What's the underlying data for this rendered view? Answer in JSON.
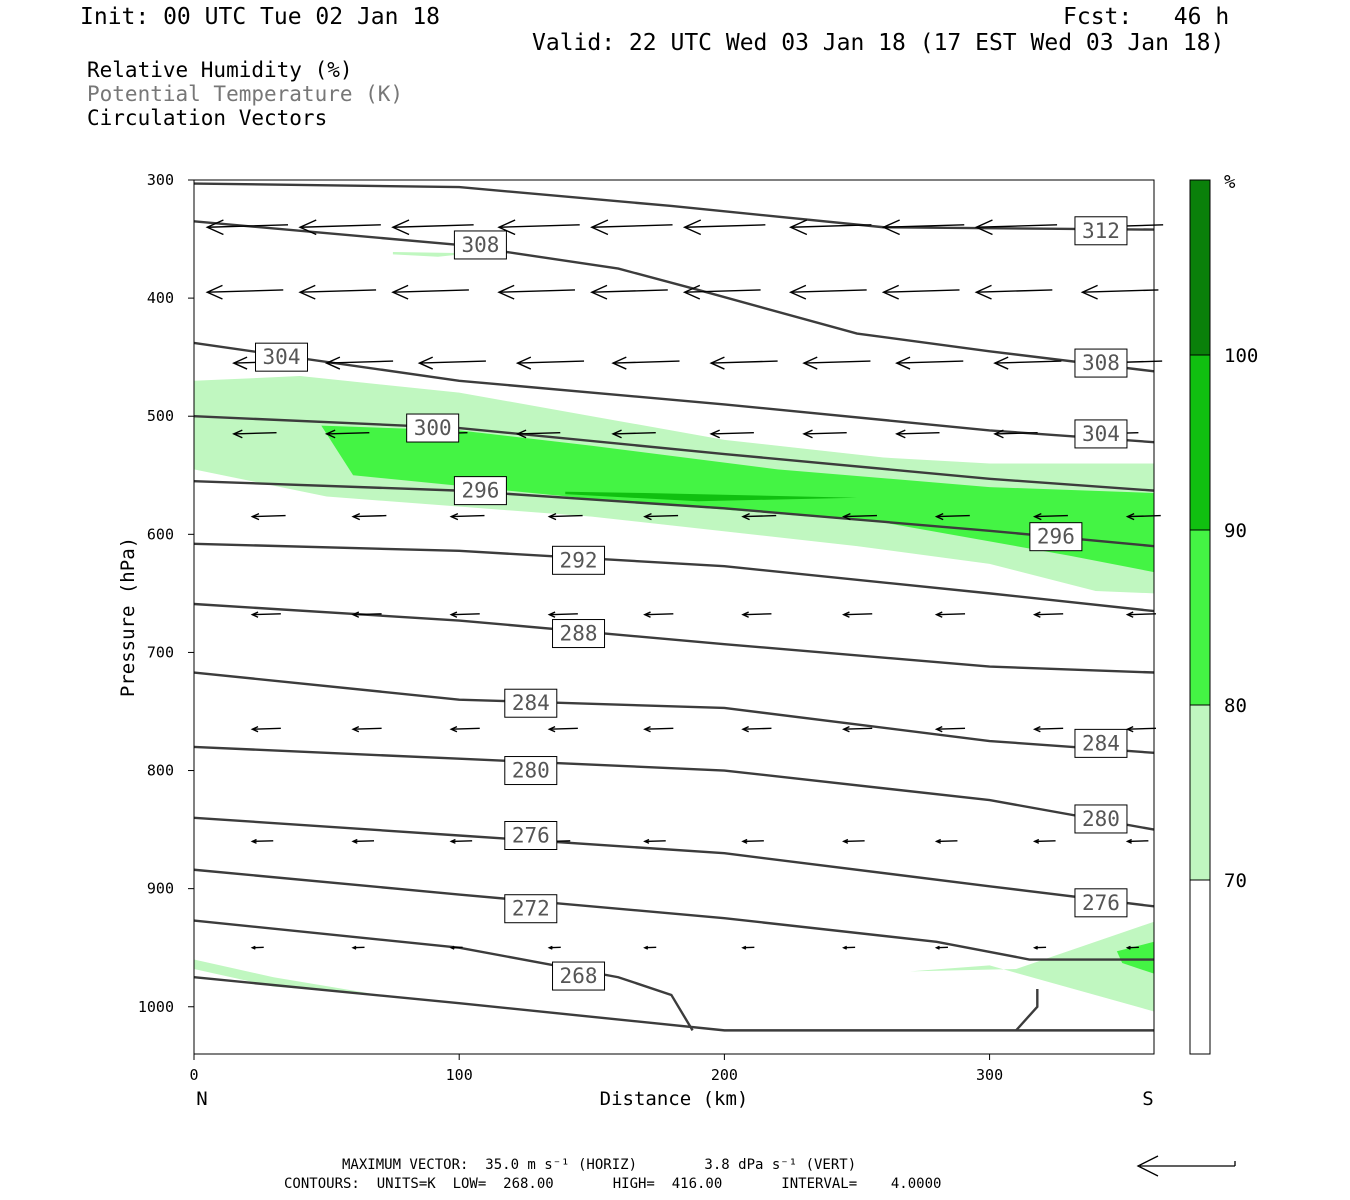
{
  "header": {
    "init": "Init: 00 UTC Tue 02 Jan 18",
    "fcst": "Fcst:   46 h",
    "valid": "Valid: 22 UTC Wed 03 Jan 18 (17 EST Wed 03 Jan 18)"
  },
  "legend": {
    "rh": "Relative Humidity (%)",
    "theta": "Potential Temperature (K)",
    "vectors": "Circulation Vectors"
  },
  "footer": {
    "maxvec": "MAXIMUM VECTOR:  35.0 m s⁻¹ (HORIZ)        3.8 dPa s⁻¹ (VERT)",
    "contours": "CONTOURS:  UNITS=K  LOW=  268.00       HIGH=  416.00       INTERVAL=    4.0000"
  },
  "colors": {
    "rh70": "#c0f7c0",
    "rh80": "#44f444",
    "rh90": "#10c010",
    "rh100": "#0a800a",
    "contour": "#3c3c3c"
  },
  "colorbar": {
    "unit": "%",
    "ticks": [
      "70",
      "80",
      "90",
      "100"
    ]
  },
  "chart_data": {
    "type": "cross-section",
    "xlabel": "Distance (km)",
    "ylabel": "Pressure (hPa)",
    "xlim": [
      0,
      362
    ],
    "ylim": [
      1040,
      300
    ],
    "x_ticks": [
      0,
      100,
      200,
      300
    ],
    "y_ticks": [
      300,
      400,
      500,
      600,
      700,
      800,
      900,
      1000
    ],
    "x_end_labels": {
      "left": "N",
      "right": "S"
    },
    "theta_contours": [
      {
        "label": "312",
        "points": [
          [
            0,
            303
          ],
          [
            100,
            306
          ],
          [
            180,
            322
          ],
          [
            260,
            340
          ],
          [
            362,
            342
          ]
        ]
      },
      {
        "label": "308",
        "points": [
          [
            0,
            335
          ],
          [
            100,
            355
          ],
          [
            160,
            375
          ],
          [
            190,
            393
          ],
          [
            250,
            430
          ],
          [
            300,
            445
          ],
          [
            362,
            462
          ]
        ]
      },
      {
        "label": "304",
        "points": [
          [
            0,
            438
          ],
          [
            100,
            470
          ],
          [
            200,
            490
          ],
          [
            300,
            512
          ],
          [
            362,
            522
          ]
        ]
      },
      {
        "label": "300",
        "points": [
          [
            0,
            500
          ],
          [
            100,
            510
          ],
          [
            200,
            532
          ],
          [
            300,
            553
          ],
          [
            362,
            563
          ]
        ]
      },
      {
        "label": "296",
        "points": [
          [
            0,
            555
          ],
          [
            100,
            563
          ],
          [
            200,
            578
          ],
          [
            300,
            597
          ],
          [
            362,
            610
          ]
        ]
      },
      {
        "label": "292",
        "points": [
          [
            0,
            608
          ],
          [
            100,
            614
          ],
          [
            200,
            627
          ],
          [
            300,
            650
          ],
          [
            362,
            665
          ]
        ]
      },
      {
        "label": "288",
        "points": [
          [
            0,
            659
          ],
          [
            100,
            673
          ],
          [
            200,
            693
          ],
          [
            300,
            712
          ],
          [
            362,
            717
          ]
        ]
      },
      {
        "label": "284",
        "points": [
          [
            0,
            717
          ],
          [
            100,
            740
          ],
          [
            200,
            747
          ],
          [
            300,
            775
          ],
          [
            362,
            785
          ]
        ]
      },
      {
        "label": "280",
        "points": [
          [
            0,
            780
          ],
          [
            100,
            790
          ],
          [
            200,
            800
          ],
          [
            300,
            825
          ],
          [
            362,
            850
          ]
        ]
      },
      {
        "label": "276",
        "points": [
          [
            0,
            840
          ],
          [
            100,
            855
          ],
          [
            200,
            870
          ],
          [
            300,
            898
          ],
          [
            362,
            915
          ]
        ]
      },
      {
        "label": "272",
        "points": [
          [
            0,
            884
          ],
          [
            100,
            905
          ],
          [
            200,
            925
          ],
          [
            280,
            945
          ],
          [
            315,
            960
          ],
          [
            362,
            960
          ]
        ]
      },
      {
        "label": "268",
        "points": [
          [
            0,
            927
          ],
          [
            100,
            950
          ],
          [
            160,
            975
          ],
          [
            180,
            990
          ],
          [
            188,
            1020
          ]
        ]
      },
      {
        "label": "",
        "points": [
          [
            0,
            975
          ],
          [
            100,
            997
          ],
          [
            200,
            1020
          ],
          [
            362,
            1020
          ]
        ]
      },
      {
        "label": "",
        "points": [
          [
            310,
            1020
          ],
          [
            318,
            1000
          ],
          [
            318,
            985
          ]
        ]
      }
    ],
    "contour_labels": [
      {
        "text": "308",
        "x": 108,
        "p": 355
      },
      {
        "text": "312",
        "x": 342,
        "p": 343
      },
      {
        "text": "304",
        "x": 33,
        "p": 450
      },
      {
        "text": "308",
        "x": 342,
        "p": 455
      },
      {
        "text": "300",
        "x": 90,
        "p": 510
      },
      {
        "text": "304",
        "x": 342,
        "p": 515
      },
      {
        "text": "296",
        "x": 108,
        "p": 563
      },
      {
        "text": "296",
        "x": 325,
        "p": 602
      },
      {
        "text": "292",
        "x": 145,
        "p": 622
      },
      {
        "text": "288",
        "x": 145,
        "p": 684
      },
      {
        "text": "284",
        "x": 127,
        "p": 743
      },
      {
        "text": "284",
        "x": 342,
        "p": 777
      },
      {
        "text": "280",
        "x": 127,
        "p": 800
      },
      {
        "text": "280",
        "x": 342,
        "p": 841
      },
      {
        "text": "276",
        "x": 127,
        "p": 855
      },
      {
        "text": "276",
        "x": 342,
        "p": 912
      },
      {
        "text": "272",
        "x": 127,
        "p": 917
      },
      {
        "text": "268",
        "x": 145,
        "p": 974
      }
    ],
    "rh_regions": [
      {
        "level": 70,
        "points": [
          [
            0,
            470
          ],
          [
            40,
            466
          ],
          [
            100,
            480
          ],
          [
            150,
            500
          ],
          [
            200,
            520
          ],
          [
            260,
            535
          ],
          [
            300,
            540
          ],
          [
            362,
            540
          ],
          [
            362,
            650
          ],
          [
            340,
            648
          ],
          [
            300,
            625
          ],
          [
            250,
            610
          ],
          [
            150,
            585
          ],
          [
            50,
            568
          ],
          [
            0,
            545
          ]
        ]
      },
      {
        "level": 80,
        "points": [
          [
            48,
            508
          ],
          [
            100,
            512
          ],
          [
            150,
            525
          ],
          [
            220,
            545
          ],
          [
            300,
            560
          ],
          [
            362,
            565
          ],
          [
            362,
            632
          ],
          [
            330,
            618
          ],
          [
            260,
            590
          ],
          [
            150,
            570
          ],
          [
            60,
            550
          ]
        ]
      },
      {
        "level": 90,
        "points": [
          [
            140,
            564
          ],
          [
            170,
            565
          ],
          [
            250,
            569
          ],
          [
            190,
            572
          ],
          [
            140,
            566
          ]
        ]
      },
      {
        "level": 70,
        "points": [
          [
            75,
            361
          ],
          [
            105,
            362
          ],
          [
            92,
            365
          ],
          [
            75,
            363
          ]
        ]
      },
      {
        "level": 70,
        "points": [
          [
            0,
            960
          ],
          [
            30,
            975
          ],
          [
            70,
            990
          ],
          [
            30,
            983
          ],
          [
            0,
            968
          ]
        ]
      },
      {
        "level": 70,
        "points": [
          [
            270,
            970
          ],
          [
            310,
            968
          ],
          [
            362,
            928
          ],
          [
            362,
            1004
          ],
          [
            300,
            965
          ],
          [
            270,
            970
          ]
        ]
      },
      {
        "level": 80,
        "points": [
          [
            348,
            953
          ],
          [
            362,
            945
          ],
          [
            362,
            972
          ],
          [
            350,
            963
          ]
        ]
      }
    ],
    "vectors": [
      {
        "p": 340,
        "u": -0.85,
        "x": [
          5,
          40,
          75,
          115,
          150,
          185,
          225,
          260,
          295,
          335
        ]
      },
      {
        "p": 395,
        "u": -0.8,
        "x": [
          5,
          40,
          75,
          115,
          150,
          185,
          225,
          260,
          295,
          335
        ]
      },
      {
        "p": 455,
        "u": -0.7,
        "x": [
          15,
          50,
          85,
          122,
          158,
          195,
          230,
          265,
          302,
          340
        ]
      },
      {
        "p": 515,
        "u": -0.45,
        "x": [
          15,
          50,
          87,
          122,
          158,
          195,
          230,
          265,
          302,
          340
        ]
      },
      {
        "p": 585,
        "u": -0.35,
        "x": [
          22,
          60,
          97,
          134,
          170,
          207,
          245,
          280,
          317,
          352
        ]
      },
      {
        "p": 668,
        "u": -0.3,
        "x": [
          22,
          60,
          97,
          134,
          170,
          207,
          245,
          280,
          317,
          352
        ]
      },
      {
        "p": 765,
        "u": -0.3,
        "x": [
          22,
          60,
          97,
          134,
          170,
          207,
          245,
          280,
          317,
          352
        ]
      },
      {
        "p": 860,
        "u": -0.22,
        "x": [
          22,
          60,
          97,
          134,
          170,
          207,
          245,
          280,
          317,
          352
        ]
      },
      {
        "p": 950,
        "u": -0.12,
        "x": [
          22,
          60,
          97,
          134,
          170,
          207,
          245,
          280,
          317,
          352
        ]
      }
    ]
  }
}
